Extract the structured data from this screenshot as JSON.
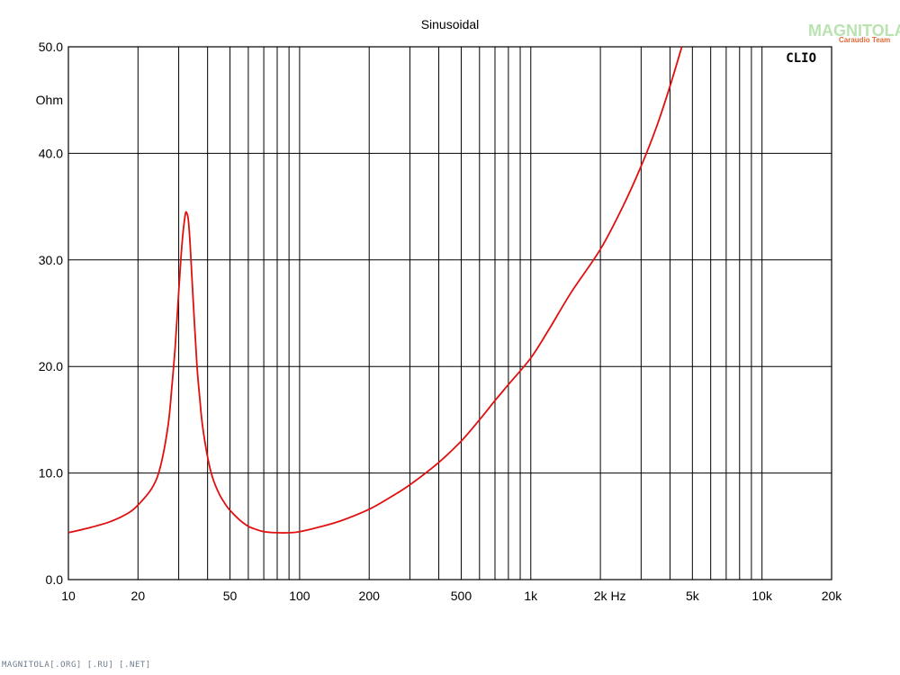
{
  "chart_data": {
    "type": "line",
    "title": "Sinusoidal",
    "xlabel": "Hz",
    "ylabel": "Ohm",
    "x_scale": "log",
    "xlim": [
      10,
      20000
    ],
    "ylim": [
      0,
      50
    ],
    "grid": true,
    "x_tick_labels": [
      {
        "value": 10,
        "label": "10"
      },
      {
        "value": 20,
        "label": "20"
      },
      {
        "value": 50,
        "label": "50"
      },
      {
        "value": 100,
        "label": "100"
      },
      {
        "value": 200,
        "label": "200"
      },
      {
        "value": 500,
        "label": "500"
      },
      {
        "value": 1000,
        "label": "1k"
      },
      {
        "value": 2000,
        "label": "2k"
      },
      {
        "value": 5000,
        "label": "5k"
      },
      {
        "value": 10000,
        "label": "10k"
      },
      {
        "value": 20000,
        "label": "20k"
      }
    ],
    "y_tick_labels": [
      "0.0",
      "10.0",
      "20.0",
      "30.0",
      "40.0",
      "50.0"
    ],
    "series": [
      {
        "color": "#e01010",
        "x": [
          10,
          12,
          15,
          18,
          20,
          23,
          25,
          27,
          28,
          29,
          30,
          31,
          32,
          32.5,
          33,
          33.5,
          34,
          35,
          36,
          37,
          38,
          40,
          42,
          45,
          48,
          50,
          55,
          60,
          65,
          70,
          80,
          90,
          100,
          120,
          150,
          200,
          250,
          300,
          400,
          500,
          600,
          700,
          800,
          1000,
          1200,
          1500,
          2000,
          2500,
          3000,
          3500,
          4000,
          4500
        ],
        "y": [
          4.4,
          4.8,
          5.4,
          6.2,
          7.0,
          8.6,
          10.6,
          14.5,
          18.0,
          22.0,
          27.0,
          31.5,
          34.2,
          34.4,
          33.8,
          32.0,
          29.5,
          24.5,
          20.0,
          17.0,
          14.5,
          11.5,
          9.6,
          8.0,
          7.0,
          6.5,
          5.6,
          5.0,
          4.7,
          4.5,
          4.4,
          4.4,
          4.5,
          4.9,
          5.5,
          6.6,
          7.8,
          8.9,
          11.0,
          13.0,
          15.0,
          16.8,
          18.3,
          20.8,
          23.5,
          27.0,
          31.0,
          35.0,
          38.8,
          42.5,
          46.3,
          50.0
        ]
      }
    ]
  },
  "brand": {
    "name": "CLIO"
  },
  "watermark": {
    "logo_text": "MAGNITOLA",
    "logo_sub": "Caraudio Team"
  },
  "footer": {
    "text": "MAGNITOLA[.ORG] [.RU] [.NET]"
  },
  "colors": {
    "curve": "#e01010",
    "grid": "#000000",
    "background": "#ffffff"
  }
}
